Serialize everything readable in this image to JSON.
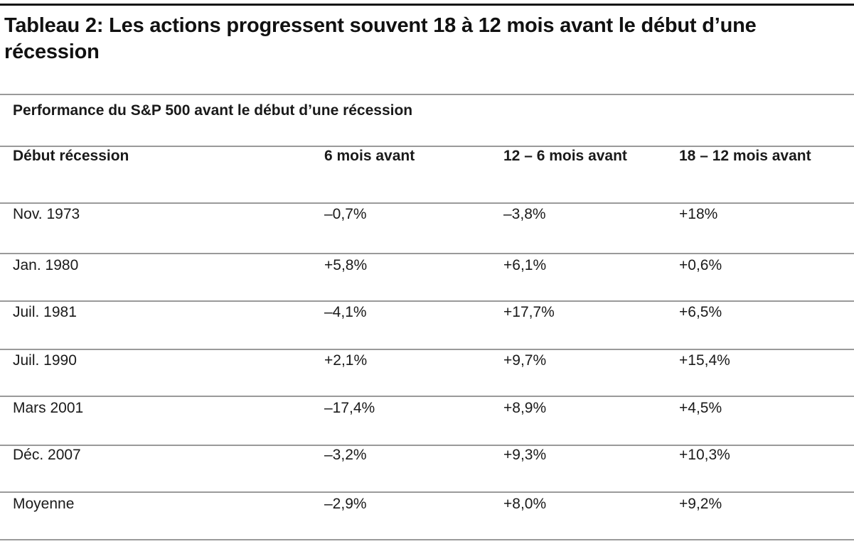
{
  "title": "Tableau 2: Les actions progressent souvent 18 à 12 mois avant le début d’une récession",
  "table": {
    "caption": "Performance du S&P 500 avant le début d’une récession",
    "headers": [
      "Début récession",
      "6 mois avant",
      "12 – 6 mois avant",
      "18 – 12 mois avant"
    ],
    "rows": [
      [
        "Nov. 1973",
        "–0,7%",
        "–3,8%",
        "+18%"
      ],
      [
        "Jan. 1980",
        "+5,8%",
        "+6,1%",
        "+0,6%"
      ],
      [
        "Juil. 1981",
        "–4,1%",
        "+17,7%",
        "+6,5%"
      ],
      [
        "Juil. 1990",
        "+2,1%",
        "+9,7%",
        "+15,4%"
      ],
      [
        "Mars 2001",
        "–17,4%",
        "+8,9%",
        "+4,5%"
      ],
      [
        "Déc. 2007",
        "–3,2%",
        "+9,3%",
        "+10,3%"
      ],
      [
        "Moyenne",
        "–2,9%",
        "+8,0%",
        "+9,2%"
      ]
    ]
  },
  "colors": {
    "text": "#1a1a1a",
    "rule": "#9a9a9a",
    "top_rule": "#111111"
  }
}
